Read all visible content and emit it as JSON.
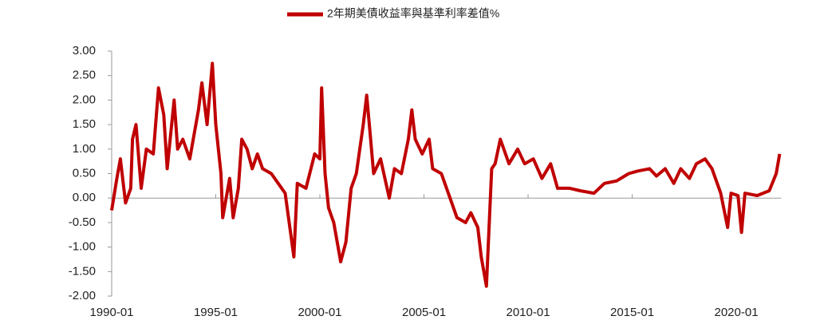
{
  "chart_data": {
    "type": "line",
    "x": [
      "1990-01",
      "1990-04",
      "1990-06",
      "1990-09",
      "1990-12",
      "1991-01",
      "1991-03",
      "1991-06",
      "1991-09",
      "1992-01",
      "1992-04",
      "1992-07",
      "1992-09",
      "1993-01",
      "1993-03",
      "1993-06",
      "1993-10",
      "1994-03",
      "1994-05",
      "1994-08",
      "1994-11",
      "1995-01",
      "1995-04",
      "1995-05",
      "1995-09",
      "1995-11",
      "1996-02",
      "1996-04",
      "1996-07",
      "1996-10",
      "1997-01",
      "1997-04",
      "1997-09",
      "1998-01",
      "1998-05",
      "1998-10",
      "1998-12",
      "1999-05",
      "1999-10",
      "2000-01",
      "2000-02",
      "2000-04",
      "2000-06",
      "2000-09",
      "2001-01",
      "2001-04",
      "2001-07",
      "2001-10",
      "2002-02",
      "2002-04",
      "2002-06",
      "2002-08",
      "2002-12",
      "2003-05",
      "2003-08",
      "2003-12",
      "2004-04",
      "2004-06",
      "2004-08",
      "2004-12",
      "2005-04",
      "2005-06",
      "2005-11",
      "2006-04",
      "2006-08",
      "2007-01",
      "2007-04",
      "2007-08",
      "2007-10",
      "2008-01",
      "2008-02",
      "2008-04",
      "2008-06",
      "2008-09",
      "2009-02",
      "2009-07",
      "2009-11",
      "2010-04",
      "2010-09",
      "2011-02",
      "2011-06",
      "2012-01",
      "2012-07",
      "2013-03",
      "2013-09",
      "2014-04",
      "2014-11",
      "2015-04",
      "2015-11",
      "2016-03",
      "2016-08",
      "2017-01",
      "2017-05",
      "2017-10",
      "2018-02",
      "2018-07",
      "2018-11",
      "2019-04",
      "2019-08",
      "2019-10",
      "2020-02",
      "2020-04",
      "2020-06",
      "2021-01",
      "2021-08",
      "2021-12",
      "2022-02"
    ],
    "series": [
      {
        "name": "2年期美債收益率與基準利率差值%",
        "color": "#c00000",
        "values": [
          -0.25,
          0.4,
          0.8,
          -0.1,
          0.2,
          1.2,
          1.5,
          0.2,
          1.0,
          0.9,
          2.25,
          1.7,
          0.6,
          2.0,
          1.0,
          1.2,
          0.8,
          1.8,
          2.35,
          1.5,
          2.75,
          1.5,
          0.5,
          -0.4,
          0.4,
          -0.4,
          0.2,
          1.2,
          1.0,
          0.6,
          0.9,
          0.6,
          0.5,
          0.3,
          0.1,
          -1.2,
          0.3,
          0.2,
          0.9,
          0.8,
          2.25,
          0.5,
          -0.2,
          -0.5,
          -1.3,
          -0.9,
          0.2,
          0.5,
          1.5,
          2.1,
          1.3,
          0.5,
          0.8,
          0.0,
          0.6,
          0.5,
          1.2,
          1.8,
          1.2,
          0.9,
          1.2,
          0.6,
          0.5,
          0.0,
          -0.4,
          -0.5,
          -0.3,
          -0.6,
          -1.2,
          -1.8,
          -1.0,
          0.6,
          0.7,
          1.2,
          0.7,
          1.0,
          0.7,
          0.8,
          0.4,
          0.7,
          0.2,
          0.2,
          0.15,
          0.1,
          0.3,
          0.35,
          0.5,
          0.55,
          0.6,
          0.45,
          0.6,
          0.3,
          0.6,
          0.4,
          0.7,
          0.8,
          0.6,
          0.1,
          -0.6,
          0.1,
          0.05,
          -0.7,
          0.1,
          0.05,
          0.15,
          0.5,
          0.9
        ]
      }
    ],
    "xlim": [
      "1990-01",
      "2022-03"
    ],
    "xticks": [
      "1990-01",
      "1995-01",
      "2000-01",
      "2005-01",
      "2010-01",
      "2015-01",
      "2020-01"
    ],
    "ylim": [
      -2,
      3
    ],
    "yticks": [
      {
        "value": -2,
        "label": "-2.00"
      },
      {
        "value": -1.5,
        "label": "-1.50"
      },
      {
        "value": -1,
        "label": "-1.00"
      },
      {
        "value": -0.5,
        "label": "-0.50"
      },
      {
        "value": 0,
        "label": "0.00"
      },
      {
        "value": 0.5,
        "label": "0.50"
      },
      {
        "value": 1,
        "label": "1.00"
      },
      {
        "value": 1.5,
        "label": "1.50"
      },
      {
        "value": 2,
        "label": "2.00"
      },
      {
        "value": 2.5,
        "label": "2.50"
      },
      {
        "value": 3,
        "label": "3.00"
      }
    ],
    "legend": "top"
  }
}
